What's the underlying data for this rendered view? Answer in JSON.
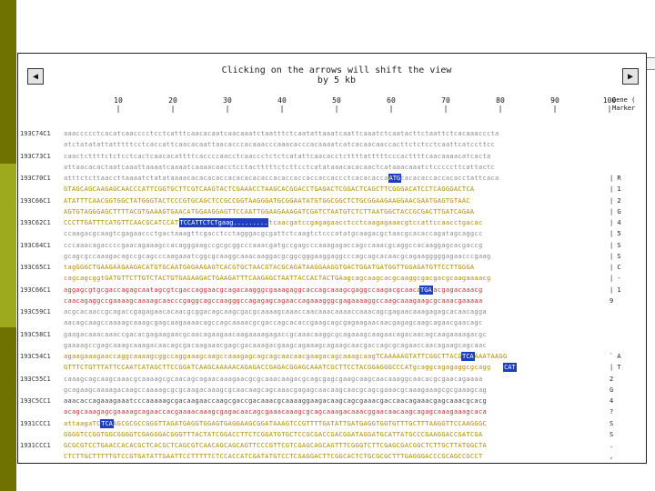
{
  "window": {
    "title_line1": "Clicking on the arrows will shift the view",
    "title_line2": "by 5 kb",
    "genes_select": "Genes",
    "left_arrow": "◀",
    "right_arrow": "▶"
  },
  "ruler": {
    "ticks": [
      "10",
      "20",
      "30",
      "40",
      "50",
      "60",
      "70",
      "80",
      "90",
      "100"
    ],
    "tick_mark": "|",
    "legend_line1": "Gene (",
    "legend_line2": "Marker"
  },
  "rows": [
    {
      "label": "193C74C1",
      "style": "grey",
      "seq": "aaaccccctcacatcaacccctcctcatttcaacacaatcaacaaatctaatttctcaatattaaatcaattcaaatctcaatacttctaattctcacaaacccta",
      "feature": "",
      "highlights": []
    },
    {
      "label": "",
      "style": "grey",
      "seq": "atctatatattatttttcctcaccattcaacacaattaacacccacaaacccaaacacccacaaaatcatcacaacaaccacttctctcctcaattcatccttcc",
      "feature": "",
      "highlights": []
    },
    {
      "label": "193C73C1",
      "style": "grey",
      "seq": "caactcttttctctcctcactcaacacattttcaccccaacctcaaccctctctcatattcaacacctcttttatttttcccacttttcaacaaaacatcacta",
      "feature": "",
      "highlights": []
    },
    {
      "label": "",
      "style": "grey",
      "seq": "attaacacactaatcaaattaaaatcaaaatcaaaacaacctcctactttttctcttcctcatataaacacacaactcataaacaaatctcccccttcattactc",
      "feature": "",
      "highlights": []
    },
    {
      "label": "193C70C1",
      "style": "grey",
      "seq": "atttctcttaaccttaaaatctatataaaacacacacaccacacacacaccacaccaccaccaccaccctcacacaccacaccacacaccaccacacctattcaca",
      "feature": "|  R",
      "highlights": [
        {
          "text": "ATG",
          "col": 62
        }
      ]
    },
    {
      "label": "",
      "style": "gold",
      "seq": "GTAGCAGCAAGAGCAACCCATTCGGTGCTTCGTCAAGTACTCGAAACCTAAGCACGGACCTGAGACTCGGACTCAGCTTCGGGACATCCTCAGGGACTCA",
      "feature": "|  1",
      "highlights": []
    },
    {
      "label": "193C66C1",
      "style": "gold",
      "seq": "ATATTTCAACGGTGGCTATGGGTACTCCCGTGCAGCTCCGCCGGTAAGGGATGCGGAATATGTGGCGGCTCTGCGGAAGAAGGAACGAATGAGTGTAAC",
      "feature": "|  2",
      "highlights": []
    },
    {
      "label": "",
      "style": "gold",
      "seq": "AGTGTAGGGAGCTTTTACGTGAAAGTGAACATGGAAGGAGTTCCAATTGGAAGAAAGATCGATCTAATGTCTCTTAATGGCTACCGCGACTTGATCAGAA",
      "feature": "|  G",
      "highlights": []
    },
    {
      "label": "193C62C1",
      "style": "gold",
      "seq": "CCCTTGATTTCATGTTCAACGCATCCATTCTCTgaagcccaagatcgagctcaacgatccgagagaacctcctcaagagaaacgtccattccaacctgacac",
      "feature": "|  4",
      "highlights": [
        {
          "text": "TCCATTCTCTgaag.........",
          "col": 22
        }
      ]
    },
    {
      "label": "",
      "style": "grey",
      "seq": "ccaagacgcaagtcgagaaccctgactaaagttcgacctcctagggacgcgattctcaagtctcccatatgcaagacgctaacgcacaccagatagcaggcc",
      "feature": "|  5",
      "highlights": []
    },
    {
      "label": "193C64C1",
      "style": "grey",
      "seq": "cccaaacagaccccgaacagaaagccacagggaagccgcgcggcccaaacgatgccgagcccaaagagaccagccaaacgcaggccacaaggagcacgaccg",
      "feature": "|  S",
      "highlights": []
    },
    {
      "label": "",
      "style": "grey",
      "seq": "gcagcgccaaagacagccgcagcccaagaaatcggcgcaaggcaaacaaggacgcggcgggaaggaggcccagcagcacaacgcagaagggggagaacccgaag",
      "feature": "|  S",
      "highlights": []
    },
    {
      "label": "193C65C1",
      "style": "gold",
      "seq": "tagGGGCTGAAGAAGAAGACATGTGCAATGAGAAGAGTCACGTGCTAACGTACGCAGATAAGGAAGGTGACTGGATGATGGTTGGAGATGTTCCTTGGGA",
      "feature": "|  C",
      "highlights": []
    },
    {
      "label": "",
      "style": "gold",
      "seq": "cagcagcggtGATGTTCTTGTCTACTGTGAGAAGACTGAAGATTTCAAGAGCTAATTACCACTACTGAagcagcaagcacgcaaggcgacgacgcaagaaaacg",
      "feature": "|  -",
      "highlights": []
    },
    {
      "label": "193C66C1",
      "style": "red",
      "seq": "aggagcgtgcgaccagagcaatagcgtcgaccaggaacgcagacaagggcgaaagaggcaccagcaaagcgaggccaagacgcaacaggaacgagacaaacg",
      "feature": "|  1",
      "highlights": [
        {
          "text": "TGA",
          "col": 68
        }
      ]
    },
    {
      "label": "",
      "style": "red",
      "seq": "caacagaggccgaaaagcaaaagcaacccgaggcagccaagggccagagagcagaaccagaaagggcgagaaaaggccaagcaaagaagcgcaaacgaaaaa",
      "feature": "   9",
      "highlights": []
    },
    {
      "label": "193C59C1",
      "style": "grey",
      "seq": "acgcacaaccgcagaccgagagaacacaacgcggacagcaagcgacgcaaaagcaaaccaacaaacaaaaccaaacagcgagaacaaagagagcacaacagga",
      "feature": "",
      "highlights": []
    },
    {
      "label": "",
      "style": "grey",
      "seq": "aacagcaagccaaaagcaaagcgagcaagaaaacagccagcaaaacgcgaccagcacaccgaagcagcgagaagaacaacgagagcaagcagaacgaacagc",
      "feature": "",
      "highlights": []
    },
    {
      "label": "193C58C1",
      "style": "grey",
      "seq": "gaagacaaacaaaccgacacgagaagaacgcaacagaagaacaagaaaagagaccgcaaacaaggcgcagaaagcaagaacagacaacagcaagaaaagacgc",
      "feature": "",
      "highlights": []
    },
    {
      "label": "",
      "style": "grey",
      "seq": "gaaaagccgagcaaagcaaagacaacagcgacaagaaacgagcgacaaagacgaagcagaaagcagaagcaacgaccagcgcagaaccaacagaagcagcaac",
      "feature": "",
      "highlights": []
    },
    {
      "label": "193C54C1",
      "style": "gold",
      "seq": "agaagaaagaaccaggcaaaagcggccaggaaagcaagccaaagagcagcagcaacaacgaagacagcaaagcaagTCAAAAAGTATTCGGCTTACGCAAAAATAAGG",
      "feature": "`  A",
      "highlights": [
        {
          "text": "TCA",
          "col": 76
        }
      ]
    },
    {
      "label": "",
      "style": "gold",
      "seq": "GTTTCTGTTTATTCCAATCATAGCTTCCGGATCAAGCAAAAACAGAGACCGAGACGGAGCAAATCGCTTCCTACGGAGGGCCCATgcaggcagagaggcgcagg",
      "feature": "|  T",
      "highlights": [
        {
          "text": "CAT",
          "col": 84
        }
      ]
    },
    {
      "label": "193C55C1",
      "style": "grey",
      "seq": "caaagcagcaagcaaacgcaaaagcgcaacagcagaacaaagaacgcgcaaacaagacgcagcgagcgaagcaagcaacaaaggcaacacgcgaacagaaaa",
      "feature": "   2",
      "highlights": []
    },
    {
      "label": "",
      "style": "grey",
      "seq": "gcagaagcaaaagacaagccaaaagcgcgcaagacaaagcgcaacaagcagcaaacgagagcaacaagcaacgcagcgaaacgcaaagaaagcgcgaaagcag",
      "feature": "   G",
      "highlights": []
    },
    {
      "label": "193C5CC1",
      "style": "dark",
      "seq": "aaacaccagaaagaaatcccaaaaagcgacaagaaccaagcgaccgacaaacgcaaaaggaagacaagcagcgaaacgaccaacagaaacgagcaaacgcacg",
      "feature": "   4",
      "highlights": []
    },
    {
      "label": "",
      "style": "red",
      "seq": "acagcaaagagcgaaaagcagaaccacgaaaacaaagcgagacaacagcgaaacaaagcgcagcaaagacaaacggaacaacaagcagagcaaagaaagcaca",
      "feature": "   ?",
      "highlights": []
    },
    {
      "label": "1931CCC1",
      "style": "gold",
      "seq": "attaagaTCAGGAGCGCGCCGGGTTAGATGAGGTGGAGTGAGGAAGCGGATAAAGTCCGTTTTGATATTGATGAGGTGGTGTTTGCTTTAAGGTTCCAAGGGC",
      "feature": "   S",
      "highlights": [
        {
          "text": "TCA",
          "col": 7
        }
      ]
    },
    {
      "label": "",
      "style": "gold",
      "seq": "GGGGTCCGGTGGCGGGGTCGAGGGACGGGTTTACTATCGGACCTTCTCGGATGTGCTCCGCGACCGACGGATAGGATGCATTATGCCCGAAGGACCGATCGA",
      "feature": "   S",
      "highlights": []
    },
    {
      "label": "1931CCC1",
      "style": "gold",
      "seq": "GCGCGTCCTGAACCACACGCTCACGCTCAGCGTCAACAGCAGCAGTTCCCGTTCGTCGAGCAGCAGTTTCGGGTCTTCGAGCGACGGCTCTTGCTTATGGCTA",
      "feature": "   .",
      "highlights": []
    },
    {
      "label": "",
      "style": "gold",
      "seq": "CTCTTGCTTTTTGTCCGTGATATTGAATTCCTTTTTCTCCACCATCGATATGTCCTCGAGGACTTCGGCACTCTGCGCGCTTTGAGGGACCCGCAGCCGCCT",
      "feature": "   ,",
      "highlights": []
    },
    {
      "label": "193C56C1",
      "style": "grey",
      "seq": "aacaagcaacagcgagaagcagcaacgacaagaaaggcaagagaacgcgaaaagaccacaaagcgaaagacaaacgacaagcagcgaagacaaacgaagcac",
      "feature": "",
      "highlights": []
    }
  ]
}
